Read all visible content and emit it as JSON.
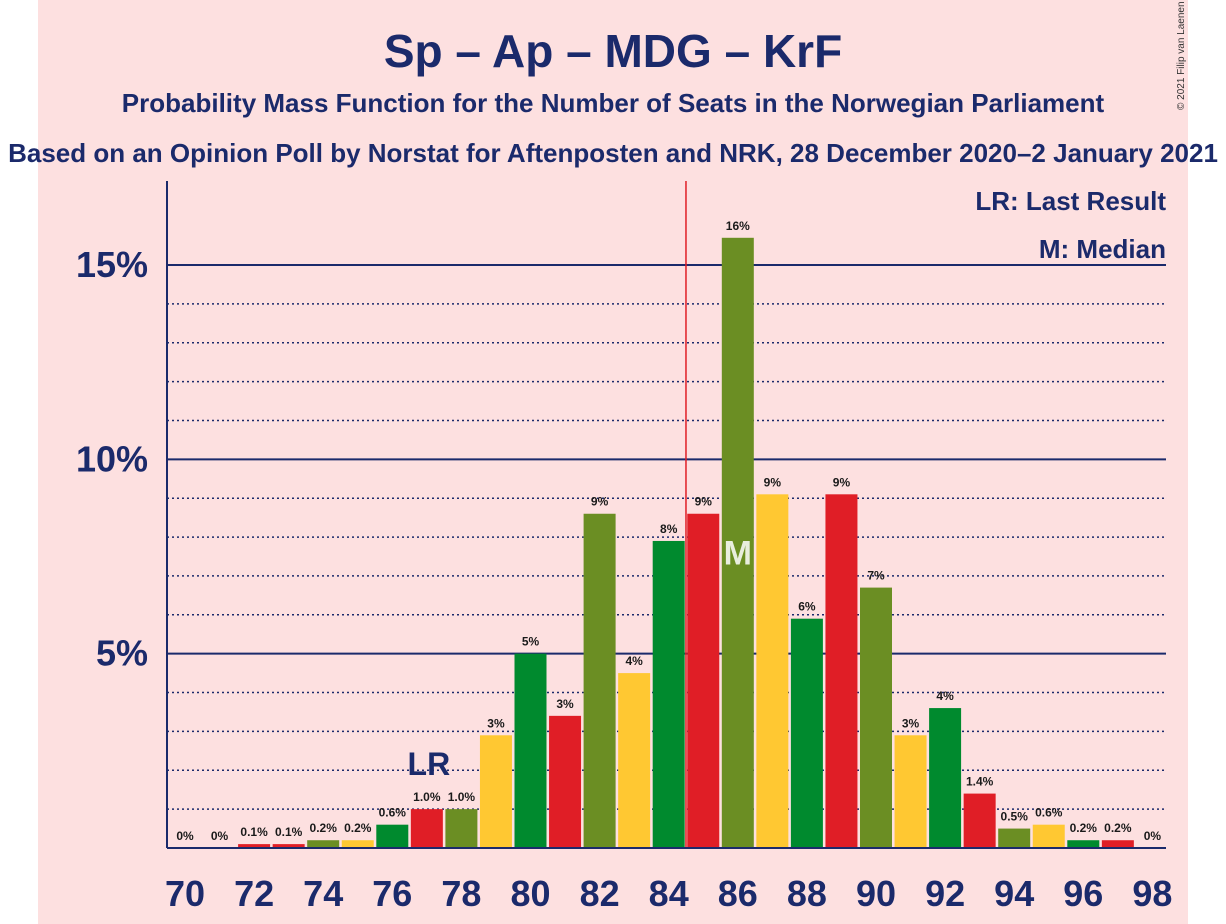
{
  "title": "Sp – Ap – MDG – KrF",
  "subtitle": "Probability Mass Function for the Number of Seats in the Norwegian Parliament",
  "source": "Based on an Opinion Poll by Norstat for Aftenposten and NRK, 28 December 2020–2 January 2021",
  "copyright": "© 2021 Filip van Laenen",
  "legend": {
    "last_result": "LR: Last Result",
    "median": "M: Median"
  },
  "markers": {
    "last_result_label": "LR",
    "median_label": "M"
  },
  "colors": {
    "Sp": "#6b8e23",
    "Ap": "#e01e26",
    "MDG": "#ffc832",
    "KrF": "#008a2e",
    "axis": "#1b2a6b",
    "background": "#fde0e0",
    "last_result_line": "#e01e26"
  },
  "chart_data": {
    "type": "bar",
    "x": [
      70,
      71,
      72,
      73,
      74,
      75,
      76,
      77,
      78,
      79,
      80,
      81,
      82,
      83,
      84,
      85,
      86,
      87,
      88,
      89,
      90,
      91,
      92,
      93,
      94,
      95,
      96,
      97,
      98
    ],
    "values": [
      0,
      0,
      0.1,
      0.1,
      0.2,
      0.2,
      0.6,
      1.0,
      1.0,
      2.9,
      5.0,
      3.4,
      8.6,
      4.5,
      7.9,
      8.6,
      15.7,
      9.1,
      5.9,
      9.1,
      6.7,
      2.9,
      3.6,
      1.4,
      0.5,
      0.6,
      0.2,
      0.2,
      0
    ],
    "labels": [
      "0%",
      "0%",
      "0.1%",
      "0.1%",
      "0.2%",
      "0.2%",
      "0.6%",
      "1.0%",
      "1.0%",
      "3%",
      "5%",
      "3%",
      "9%",
      "4%",
      "8%",
      "9%",
      "16%",
      "9%",
      "6%",
      "9%",
      "7%",
      "3%",
      "4%",
      "1.4%",
      "0.5%",
      "0.6%",
      "0.2%",
      "0.2%",
      "0%"
    ],
    "bar_colors": [
      "#ffc832",
      "#008a2e",
      "#e01e26",
      "#e01e26",
      "#6b8e23",
      "#ffc832",
      "#008a2e",
      "#e01e26",
      "#6b8e23",
      "#ffc832",
      "#008a2e",
      "#e01e26",
      "#6b8e23",
      "#ffc832",
      "#008a2e",
      "#e01e26",
      "#6b8e23",
      "#ffc832",
      "#008a2e",
      "#e01e26",
      "#6b8e23",
      "#ffc832",
      "#008a2e",
      "#e01e26",
      "#6b8e23",
      "#ffc832",
      "#008a2e",
      "#e01e26",
      "#6b8e23"
    ],
    "x_ticks": [
      "70",
      "72",
      "74",
      "76",
      "78",
      "80",
      "82",
      "84",
      "86",
      "88",
      "90",
      "92",
      "94",
      "96",
      "98"
    ],
    "y_ticks": [
      {
        "value": 5,
        "label": "5%"
      },
      {
        "value": 10,
        "label": "10%"
      },
      {
        "value": 15,
        "label": "15%"
      }
    ],
    "ylim": [
      0,
      17
    ],
    "last_result_seat": 77,
    "last_result_line_at": 84.5,
    "median_seat": 86,
    "grid": "dotted every 1%, solid every 5%"
  }
}
